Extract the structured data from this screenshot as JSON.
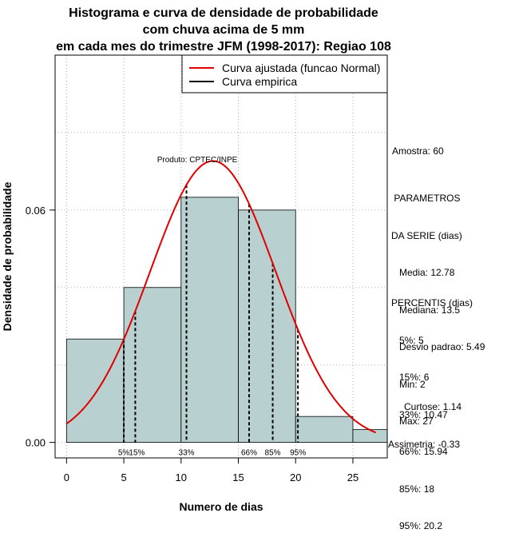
{
  "chart_data": {
    "type": "bar",
    "title_lines": [
      "Histograma e curva de densidade de probabilidade",
      "com chuva acima de 5 mm",
      "em cada mes do trimestre JFM (1998-2017): Regiao 108"
    ],
    "xlabel": "Numero de dias",
    "ylabel": "Densidade de probabilidade",
    "xlim": [
      -1,
      28
    ],
    "ylim": [
      -0.004,
      0.1
    ],
    "x_ticks": [
      0,
      5,
      10,
      15,
      20,
      25
    ],
    "y_ticks": [
      0.0,
      0.06
    ],
    "y_tick_labels": [
      "0.00",
      "0.06"
    ],
    "grid": true,
    "grid_x": [
      0,
      5,
      10,
      15,
      20,
      25
    ],
    "grid_y": [
      0.0,
      0.02,
      0.04,
      0.06,
      0.08
    ],
    "bins": [
      {
        "x0": 0,
        "x1": 5,
        "density": 0.0267
      },
      {
        "x0": 5,
        "x1": 10,
        "density": 0.04
      },
      {
        "x0": 10,
        "x1": 15,
        "density": 0.0633
      },
      {
        "x0": 15,
        "x1": 20,
        "density": 0.06
      },
      {
        "x0": 20,
        "x1": 25,
        "density": 0.0067
      },
      {
        "x0": 25,
        "x1": 28,
        "density": 0.0033
      }
    ],
    "bar_color": "#b8d0cf",
    "normal_curve": {
      "mean": 12.78,
      "sd": 5.49,
      "x_from": 0,
      "x_to": 27,
      "color": "#e00000"
    },
    "percentile_lines": [
      {
        "label": "5%",
        "x": 5
      },
      {
        "label": "15%",
        "x": 6
      },
      {
        "label": "33%",
        "x": 10.47
      },
      {
        "label": "66%",
        "x": 15.94
      },
      {
        "label": "85%",
        "x": 18
      },
      {
        "label": "95%",
        "x": 20.2
      }
    ],
    "legend": {
      "position": "top-right",
      "entries": [
        {
          "label": "Curva ajustada (funcao Normal)",
          "color": "#e00000"
        },
        {
          "label": "Curva empirica",
          "color": "#000000"
        }
      ]
    },
    "annotation": "Produto: CPTEC/INPE"
  },
  "stats": {
    "amostra": "Amostra: 60",
    "param_lines": [
      " PARAMETROS",
      "DA SERIE (dias)",
      "   Media: 12.78",
      "   Mediana: 13.5",
      "   Desvio padrao: 5.49",
      "   Min: 2",
      "   Max: 27"
    ],
    "percentis_lines": [
      "PERCENTIS (dias)",
      "   5%: 5",
      "   15%: 6",
      "   33%: 10.47",
      "   66%: 15.94",
      "   85%: 18",
      "   95%: 20.2"
    ],
    "shape_lines": [
      "      Curtose: 1.14",
      "Assimetria: -0.33"
    ]
  }
}
